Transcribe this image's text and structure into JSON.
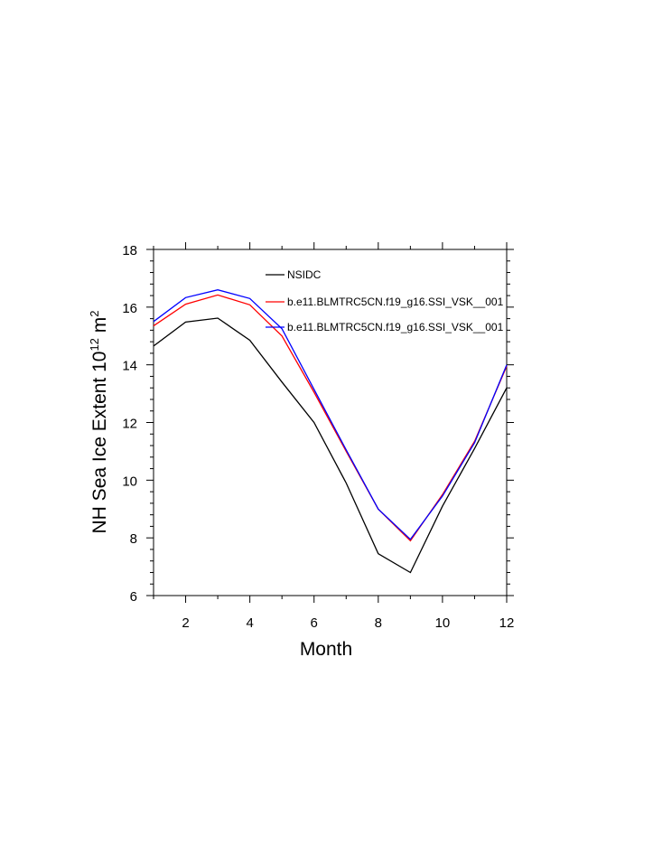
{
  "chart_data": {
    "type": "line",
    "title": "",
    "xlabel": "Month",
    "ylabel_main": "NH Sea Ice Extent 10",
    "ylabel_exp1": "12",
    "ylabel_unit": " m",
    "ylabel_exp2": "2",
    "xlim": [
      1,
      12
    ],
    "ylim": [
      6,
      18
    ],
    "xticks": [
      2,
      4,
      6,
      8,
      10,
      12
    ],
    "yticks": [
      6,
      8,
      10,
      12,
      14,
      16,
      18
    ],
    "grid": false,
    "legend_position": "top-right",
    "x": [
      1,
      2,
      3,
      4,
      5,
      6,
      7,
      8,
      9,
      10,
      11,
      12
    ],
    "series": [
      {
        "name": "NSIDC",
        "color": "#000000",
        "values": [
          14.65,
          15.48,
          15.62,
          14.85,
          13.4,
          12.0,
          9.9,
          7.45,
          6.8,
          9.1,
          11.1,
          13.2
        ]
      },
      {
        "name": "b.e11.BLMTRC5CN.f19_g16.SSI_VSK__001",
        "color": "#ff0000",
        "values": [
          15.35,
          16.1,
          16.42,
          16.08,
          15.0,
          13.05,
          11.0,
          9.0,
          7.9,
          9.5,
          11.35,
          13.95
        ]
      },
      {
        "name": "b.e11.BLMTRC5CN.f19_g16.SSI_VSK__001",
        "color": "#0000ff",
        "values": [
          15.5,
          16.33,
          16.6,
          16.3,
          15.25,
          13.15,
          11.05,
          9.0,
          7.95,
          9.45,
          11.3,
          14.0
        ]
      }
    ]
  }
}
